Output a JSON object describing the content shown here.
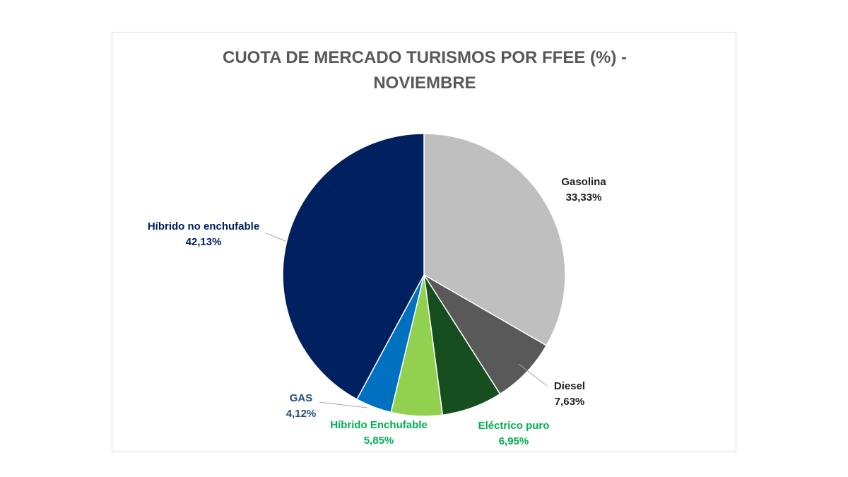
{
  "chart_data": {
    "type": "pie",
    "title_line1": "CUOTA DE MERCADO TURISMOS POR FFEE (%) -",
    "title_line2": "NOVIEMBRE",
    "slices": [
      {
        "name": "Gasolina",
        "value": 33.33,
        "value_label": "33,33%",
        "color": "#bfbfbf",
        "label_color": "#1f1f1f"
      },
      {
        "name": "Diesel",
        "value": 7.63,
        "value_label": "7,63%",
        "color": "#595959",
        "label_color": "#1f1f1f"
      },
      {
        "name": "Eléctrico puro",
        "value": 6.95,
        "value_label": "6,95%",
        "color": "#174e1f",
        "label_color": "#00b050"
      },
      {
        "name": "Híbrido Enchufable",
        "value": 5.85,
        "value_label": "5,85%",
        "color": "#92d050",
        "label_color": "#00b050"
      },
      {
        "name": "GAS",
        "value": 4.12,
        "value_label": "4,12%",
        "color": "#0070c0",
        "label_color": "#1f4e79"
      },
      {
        "name": "Híbrido no enchufable",
        "value": 42.13,
        "value_label": "42,13%",
        "color": "#002060",
        "label_color": "#002060"
      }
    ],
    "start_angle_deg": 0,
    "direction": "clockwise"
  }
}
